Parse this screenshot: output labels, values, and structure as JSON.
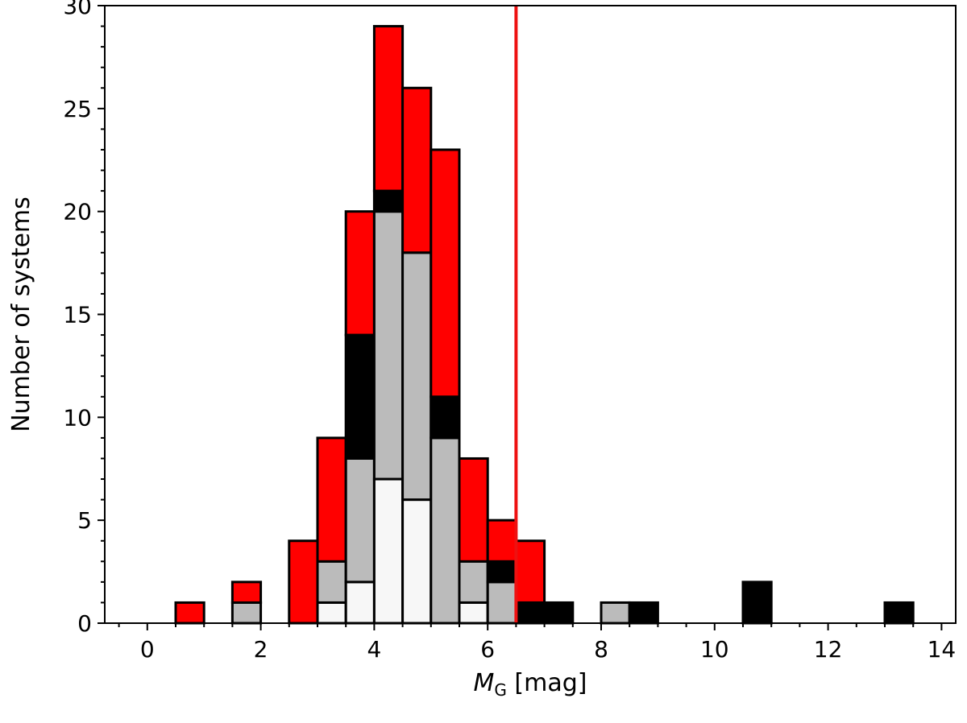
{
  "chart_data": {
    "type": "bar",
    "stacked": true,
    "xlabel_main": "M",
    "xlabel_sub": "G",
    "xlabel_unit": " [mag]",
    "ylabel": "Number of systems",
    "xlim": [
      -0.75,
      14.25
    ],
    "ylim": [
      0,
      30
    ],
    "x_ticks": [
      0,
      2,
      4,
      6,
      8,
      10,
      12,
      14
    ],
    "y_ticks": [
      0,
      5,
      10,
      15,
      20,
      25,
      30
    ],
    "bin_width": 0.5,
    "vline_x": 6.5,
    "vline_color": "#ee1111",
    "bins": [
      {
        "x0": 0.5,
        "segments": [
          {
            "value": 1,
            "color": "#ff0000"
          }
        ]
      },
      {
        "x0": 1.5,
        "segments": [
          {
            "value": 1,
            "color": "#bbbbbb"
          },
          {
            "value": 1,
            "color": "#ff0000"
          }
        ]
      },
      {
        "x0": 2.5,
        "segments": [
          {
            "value": 4,
            "color": "#ff0000"
          }
        ]
      },
      {
        "x0": 3.0,
        "segments": [
          {
            "value": 1,
            "color": "#f7f7f7"
          },
          {
            "value": 2,
            "color": "#bbbbbb"
          },
          {
            "value": 6,
            "color": "#ff0000"
          }
        ]
      },
      {
        "x0": 3.5,
        "segments": [
          {
            "value": 2,
            "color": "#f7f7f7"
          },
          {
            "value": 6,
            "color": "#bbbbbb"
          },
          {
            "value": 6,
            "color": "#000000"
          },
          {
            "value": 6,
            "color": "#ff0000"
          }
        ]
      },
      {
        "x0": 4.0,
        "segments": [
          {
            "value": 7,
            "color": "#f7f7f7"
          },
          {
            "value": 13,
            "color": "#bbbbbb"
          },
          {
            "value": 1,
            "color": "#000000"
          },
          {
            "value": 8,
            "color": "#ff0000"
          }
        ]
      },
      {
        "x0": 4.5,
        "segments": [
          {
            "value": 6,
            "color": "#f7f7f7"
          },
          {
            "value": 12,
            "color": "#bbbbbb"
          },
          {
            "value": 8,
            "color": "#ff0000"
          }
        ]
      },
      {
        "x0": 5.0,
        "segments": [
          {
            "value": 9,
            "color": "#bbbbbb"
          },
          {
            "value": 2,
            "color": "#000000"
          },
          {
            "value": 12,
            "color": "#ff0000"
          }
        ]
      },
      {
        "x0": 5.5,
        "segments": [
          {
            "value": 1,
            "color": "#f7f7f7"
          },
          {
            "value": 2,
            "color": "#bbbbbb"
          },
          {
            "value": 5,
            "color": "#ff0000"
          }
        ]
      },
      {
        "x0": 6.0,
        "segments": [
          {
            "value": 2,
            "color": "#bbbbbb"
          },
          {
            "value": 1,
            "color": "#000000"
          },
          {
            "value": 2,
            "color": "#ff0000"
          }
        ]
      },
      {
        "x0": 6.5,
        "segments": [
          {
            "value": 1,
            "color": "#000000"
          },
          {
            "value": 3,
            "color": "#ff0000"
          }
        ]
      },
      {
        "x0": 7.0,
        "segments": [
          {
            "value": 1,
            "color": "#000000"
          }
        ]
      },
      {
        "x0": 8.0,
        "segments": [
          {
            "value": 1,
            "color": "#bbbbbb"
          }
        ]
      },
      {
        "x0": 8.5,
        "segments": [
          {
            "value": 1,
            "color": "#000000"
          }
        ]
      },
      {
        "x0": 10.5,
        "segments": [
          {
            "value": 2,
            "color": "#000000"
          }
        ]
      },
      {
        "x0": 13.0,
        "segments": [
          {
            "value": 1,
            "color": "#000000"
          }
        ]
      }
    ]
  }
}
